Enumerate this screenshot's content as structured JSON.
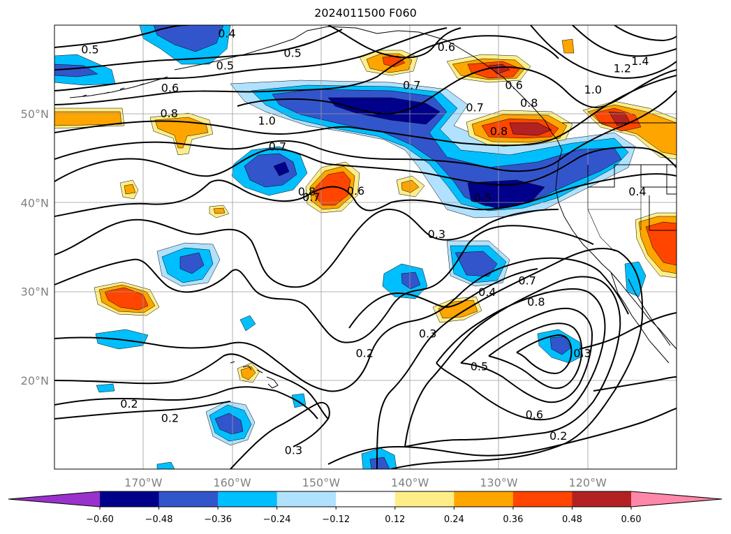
{
  "title": "2024011500 F060",
  "lon_axis": {
    "range": [
      -180,
      -110
    ],
    "ticks": [
      {
        "value": -170,
        "label": "170°W"
      },
      {
        "value": -160,
        "label": "160°W"
      },
      {
        "value": -150,
        "label": "150°W"
      },
      {
        "value": -140,
        "label": "140°W"
      },
      {
        "value": -130,
        "label": "130°W"
      },
      {
        "value": -120,
        "label": "120°W"
      }
    ]
  },
  "lat_axis": {
    "range": [
      10,
      60
    ],
    "ticks": [
      {
        "value": 20,
        "label": "20°N"
      },
      {
        "value": 30,
        "label": "30°N"
      },
      {
        "value": 40,
        "label": "40°N"
      },
      {
        "value": 50,
        "label": "50°N"
      }
    ]
  },
  "grid": true,
  "colorbar": {
    "orientation": "horizontal",
    "extend": "both",
    "colors": [
      "#9932cc",
      "#00008b",
      "#3355cc",
      "#00bfff",
      "#b0e2ff",
      "#ffffff",
      "#ffee88",
      "#ffa500",
      "#ff4500",
      "#b22222",
      "#ff88aa"
    ],
    "tick_labels": [
      "−0.60",
      "−0.48",
      "−0.36",
      "−0.24",
      "−0.12",
      "0.12",
      "0.24",
      "0.36",
      "0.48",
      "0.60"
    ]
  },
  "contour_labels": [
    {
      "text": "0.4",
      "lon": -160.6,
      "lat": 59.0
    },
    {
      "text": "0.5",
      "lon": -176.0,
      "lat": 57.2
    },
    {
      "text": "0.5",
      "lon": -160.8,
      "lat": 55.4
    },
    {
      "text": "0.5",
      "lon": -153.2,
      "lat": 56.8
    },
    {
      "text": "0.6",
      "lon": -167.0,
      "lat": 52.9
    },
    {
      "text": "0.8",
      "lon": -167.1,
      "lat": 50.0
    },
    {
      "text": "0.6",
      "lon": -135.9,
      "lat": 57.5
    },
    {
      "text": "0.7",
      "lon": -139.8,
      "lat": 53.2
    },
    {
      "text": "0.6",
      "lon": -128.3,
      "lat": 53.2
    },
    {
      "text": "0.7",
      "lon": -132.7,
      "lat": 50.7
    },
    {
      "text": "0.8",
      "lon": -126.6,
      "lat": 51.2
    },
    {
      "text": "0.8",
      "lon": -130.0,
      "lat": 48.0
    },
    {
      "text": "1.0",
      "lon": -119.4,
      "lat": 52.7
    },
    {
      "text": "1.2",
      "lon": -116.1,
      "lat": 55.1
    },
    {
      "text": "1.4",
      "lon": -114.1,
      "lat": 55.9
    },
    {
      "text": "1.0",
      "lon": -156.1,
      "lat": 49.2
    },
    {
      "text": "0.7",
      "lon": -154.9,
      "lat": 46.3
    },
    {
      "text": "0.8",
      "lon": -151.6,
      "lat": 41.2
    },
    {
      "text": "0.7",
      "lon": -151.1,
      "lat": 40.6
    },
    {
      "text": "0.6",
      "lon": -146.1,
      "lat": 41.3
    },
    {
      "text": "0.5",
      "lon": -131.8,
      "lat": 40.5
    },
    {
      "text": "0.3",
      "lon": -137.0,
      "lat": 36.4
    },
    {
      "text": "0.4",
      "lon": -114.4,
      "lat": 41.2
    },
    {
      "text": "0.4",
      "lon": -131.3,
      "lat": 29.9
    },
    {
      "text": "0.7",
      "lon": -126.8,
      "lat": 31.2
    },
    {
      "text": "0.8",
      "lon": -125.8,
      "lat": 28.8
    },
    {
      "text": "0.3",
      "lon": -138.0,
      "lat": 25.2
    },
    {
      "text": "0.2",
      "lon": -145.1,
      "lat": 23.0
    },
    {
      "text": "0.5",
      "lon": -132.2,
      "lat": 21.5
    },
    {
      "text": "0.3",
      "lon": -120.6,
      "lat": 23.0
    },
    {
      "text": "0.6",
      "lon": -126.0,
      "lat": 16.1
    },
    {
      "text": "0.2",
      "lon": -123.3,
      "lat": 13.7
    },
    {
      "text": "0.2",
      "lon": -171.6,
      "lat": 17.3
    },
    {
      "text": "0.2",
      "lon": -167.0,
      "lat": 15.7
    },
    {
      "text": "0.3",
      "lon": -153.1,
      "lat": 12.1
    }
  ]
}
